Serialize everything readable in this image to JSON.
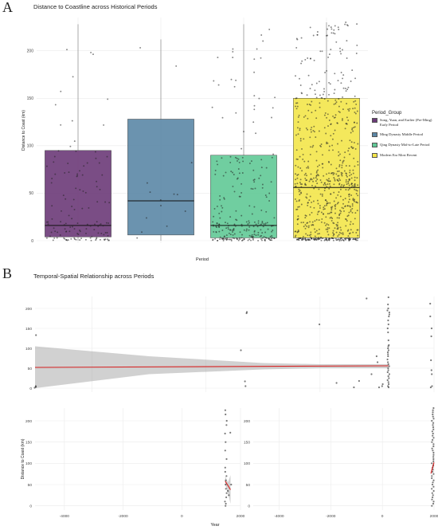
{
  "panels": {
    "a_letter": "A",
    "b_letter": "B",
    "a_title": "Distance to Coastline across Historical Periods",
    "b_title": "Temporal-Spatial Relationship across Periods"
  },
  "legend": {
    "title": "Period_Group",
    "items": [
      {
        "label": "Song, Yuan, and Earlier (Pre-Ming)   Early Period",
        "color": "#6b3a78"
      },
      {
        "label": "Ming Dynasty  Middle Period",
        "color": "#5b87a6"
      },
      {
        "label": "Qing Dynasty  Mid-to-Late Period",
        "color": "#60c996"
      },
      {
        "label": "Modern Era     Most Recent",
        "color": "#f3e54a"
      }
    ]
  },
  "chart_data": [
    {
      "type": "box",
      "title": "Distance to Coastline across Historical Periods",
      "xlabel": "Period",
      "ylabel": "Distance to Coast (km)",
      "ylim": [
        0,
        235
      ],
      "yticks": [
        0,
        50,
        100,
        150,
        200
      ],
      "grid": true,
      "legend_position": "right",
      "series": [
        {
          "name": "Song, Yuan, and Earlier (Pre-Ming)   Early Period",
          "color": "#6b3a78",
          "min": 0,
          "q1": 4,
          "median": 16,
          "q3": 95,
          "max": 228,
          "n_points": 130
        },
        {
          "name": "Ming Dynasty  Middle Period",
          "color": "#5b87a6",
          "min": 0,
          "q1": 6,
          "median": 42,
          "q3": 128,
          "max": 212,
          "n_points": 14
        },
        {
          "name": "Qing Dynasty  Mid-to-Late Period",
          "color": "#60c996",
          "min": 0,
          "q1": 3,
          "median": 16,
          "q3": 90,
          "max": 228,
          "n_points": 260
        },
        {
          "name": "Modern Era     Most Recent",
          "color": "#f3e54a",
          "min": 0,
          "q1": 3,
          "median": 56,
          "q3": 150,
          "max": 230,
          "n_points": 750
        }
      ]
    },
    {
      "type": "scatter",
      "title": "Temporal-Spatial Relationship across Periods",
      "xlabel": "Year",
      "ylabel": "Distance to Coast (km)",
      "facets": [
        {
          "xlim": [
            -5000,
            2000
          ],
          "xticks": [
            -4000,
            -2000,
            0,
            2000
          ],
          "ylim": [
            -10,
            230
          ],
          "yticks": [
            0,
            50,
            100,
            150,
            200
          ],
          "points": [
            [
              -5000,
              133
            ],
            [
              -5000,
              3
            ],
            [
              -5000,
              5
            ],
            [
              -5000,
              1
            ],
            [
              -1300,
              188
            ],
            [
              -1300,
              191
            ],
            [
              -1300,
              17
            ],
            [
              -1300,
              5
            ],
            [
              -1400,
              95
            ],
            [
              0,
              160
            ],
            [
              300,
              13
            ],
            [
              600,
              2
            ],
            [
              700,
              18
            ],
            [
              800,
              225
            ],
            [
              900,
              35
            ],
            [
              1000,
              65
            ],
            [
              1000,
              80
            ],
            [
              1050,
              2
            ],
            [
              1100,
              5
            ],
            [
              1100,
              10
            ],
            [
              1200,
              228
            ],
            [
              1200,
              210
            ],
            [
              1200,
              200
            ],
            [
              1200,
              195
            ],
            [
              1200,
              190
            ],
            [
              1200,
              185
            ],
            [
              1200,
              180
            ],
            [
              1200,
              170
            ],
            [
              1200,
              160
            ],
            [
              1200,
              150
            ],
            [
              1200,
              140
            ],
            [
              1200,
              120
            ],
            [
              1200,
              108
            ],
            [
              1200,
              105
            ],
            [
              1200,
              100
            ],
            [
              1200,
              95
            ],
            [
              1200,
              90
            ],
            [
              1200,
              85
            ],
            [
              1200,
              80
            ],
            [
              1200,
              72
            ],
            [
              1200,
              65
            ],
            [
              1200,
              60
            ],
            [
              1200,
              55
            ],
            [
              1200,
              50
            ],
            [
              1200,
              45
            ],
            [
              1200,
              40
            ],
            [
              1200,
              35
            ],
            [
              1200,
              30
            ],
            [
              1200,
              25
            ],
            [
              1200,
              20
            ],
            [
              1200,
              15
            ],
            [
              1200,
              10
            ],
            [
              1200,
              5
            ],
            [
              1200,
              2
            ],
            [
              1950,
              212
            ],
            [
              1950,
              180
            ],
            [
              1950,
              150
            ],
            [
              1950,
              130
            ],
            [
              1950,
              70
            ],
            [
              1950,
              45
            ],
            [
              1950,
              35
            ],
            [
              1950,
              5
            ],
            [
              1950,
              2
            ]
          ],
          "fit": {
            "x": [
              -5000,
              1200
            ],
            "y": [
              52,
              56
            ]
          },
          "band": {
            "x": [
              -5000,
              -3000,
              -1000,
              0,
              1200
            ],
            "lower": [
              0,
              35,
              47,
              50,
              50
            ],
            "upper": [
              105,
              80,
              63,
              60,
              60
            ]
          }
        },
        {
          "xlim": [
            -5000,
            2000
          ],
          "xticks": [
            -4000,
            -2000,
            0,
            2000
          ],
          "ylim": [
            -10,
            230
          ],
          "yticks": [
            0,
            50,
            100,
            150,
            200
          ],
          "points": [
            [
              1500,
              225
            ],
            [
              1500,
              215
            ],
            [
              1500,
              200
            ],
            [
              1500,
              190
            ],
            [
              1500,
              170
            ],
            [
              1500,
              150
            ],
            [
              1500,
              130
            ],
            [
              1500,
              110
            ],
            [
              1500,
              90
            ],
            [
              1500,
              80
            ],
            [
              1500,
              70
            ],
            [
              1500,
              60
            ],
            [
              1500,
              50
            ],
            [
              1500,
              40
            ],
            [
              1500,
              30
            ],
            [
              1500,
              20
            ],
            [
              1500,
              10
            ],
            [
              1500,
              5
            ],
            [
              1500,
              0
            ],
            [
              1550,
              35
            ],
            [
              1600,
              25
            ],
            [
              1650,
              172
            ],
            [
              1650,
              50
            ]
          ],
          "fit": {
            "x": [
              1480,
              1660
            ],
            "y": [
              58,
              38
            ]
          },
          "band": {
            "x": [
              1480,
              1570,
              1660
            ],
            "lower": [
              50,
              30,
              5
            ],
            "upper": [
              70,
              55,
              72
            ]
          }
        },
        {
          "xlim": [
            -5000,
            2000
          ],
          "xticks": [
            -4000,
            -2000,
            0,
            2000
          ],
          "ylim": [
            -10,
            230
          ],
          "yticks": [
            0,
            50,
            100,
            150,
            200
          ],
          "points": [
            [
              1950,
              230
            ],
            [
              1950,
              225
            ],
            [
              1950,
              220
            ],
            [
              1950,
              215
            ],
            [
              1950,
              210
            ],
            [
              1950,
              205
            ],
            [
              1950,
              200
            ],
            [
              1950,
              195
            ],
            [
              1950,
              190
            ],
            [
              1950,
              185
            ],
            [
              1950,
              180
            ],
            [
              1950,
              175
            ],
            [
              1950,
              170
            ],
            [
              1950,
              165
            ],
            [
              1950,
              160
            ],
            [
              1950,
              155
            ],
            [
              1950,
              150
            ],
            [
              1950,
              145
            ],
            [
              1950,
              140
            ],
            [
              1950,
              135
            ],
            [
              1950,
              130
            ],
            [
              1950,
              125
            ],
            [
              1950,
              120
            ],
            [
              1950,
              115
            ],
            [
              1950,
              110
            ],
            [
              1950,
              105
            ],
            [
              1950,
              100
            ],
            [
              1950,
              95
            ],
            [
              1950,
              90
            ],
            [
              1950,
              85
            ],
            [
              1950,
              80
            ],
            [
              1950,
              75
            ],
            [
              1950,
              70
            ],
            [
              1950,
              65
            ],
            [
              1950,
              60
            ],
            [
              1950,
              55
            ],
            [
              1950,
              50
            ],
            [
              1950,
              45
            ],
            [
              1950,
              40
            ],
            [
              1950,
              35
            ],
            [
              1950,
              30
            ],
            [
              1950,
              25
            ],
            [
              1950,
              20
            ],
            [
              1950,
              15
            ],
            [
              1950,
              10
            ],
            [
              1950,
              5
            ],
            [
              1950,
              0
            ]
          ],
          "fit": {
            "x": [
              1880,
              2000
            ],
            "y": [
              76,
              102
            ]
          },
          "band": {
            "x": [
              1880,
              1940,
              2000
            ],
            "lower": [
              70,
              88,
              92
            ],
            "upper": [
              82,
              95,
              112
            ]
          }
        }
      ]
    }
  ]
}
